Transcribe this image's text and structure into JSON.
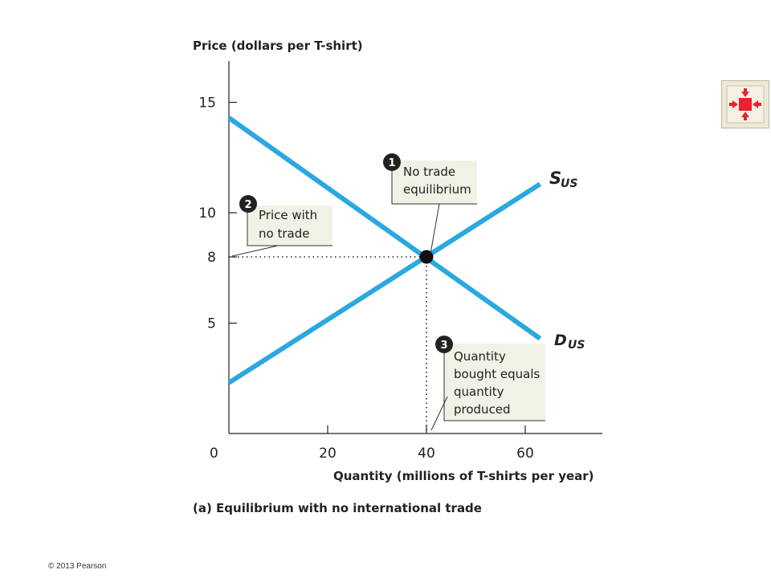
{
  "chart_data": {
    "type": "line",
    "ylabel": "Price (dollars per T-shirt)",
    "xlabel": "Quantity (millions of T-shirts per year)",
    "subtitle": "(a) Equilibrium with no international trade",
    "x_origin_label": "0",
    "xticks": [
      20,
      40,
      60
    ],
    "yticks": [
      5,
      8,
      10,
      15
    ],
    "xlim": [
      0,
      75
    ],
    "ylim": [
      0,
      17
    ],
    "series": [
      {
        "name": "S",
        "subscript": "US",
        "color": "#2aa8e0",
        "points": [
          [
            0,
            2.3
          ],
          [
            63,
            11.3
          ]
        ]
      },
      {
        "name": "D",
        "subscript": "US",
        "color": "#2aa8e0",
        "points": [
          [
            0,
            14.3
          ],
          [
            63,
            4.3
          ]
        ]
      }
    ],
    "equilibrium": {
      "x": 40,
      "y": 8
    },
    "callouts": [
      {
        "number": "1",
        "lines": [
          "No trade",
          "equilibrium"
        ]
      },
      {
        "number": "2",
        "lines": [
          "Price with",
          "no trade"
        ]
      },
      {
        "number": "3",
        "lines": [
          "Quantity",
          "bought equals",
          "quantity",
          "produced"
        ]
      }
    ]
  },
  "footer": {
    "copyright": "© 2013 Pearson"
  },
  "nav_button": {
    "icon": "collapse-arrows-icon",
    "color": "#e8232e"
  }
}
